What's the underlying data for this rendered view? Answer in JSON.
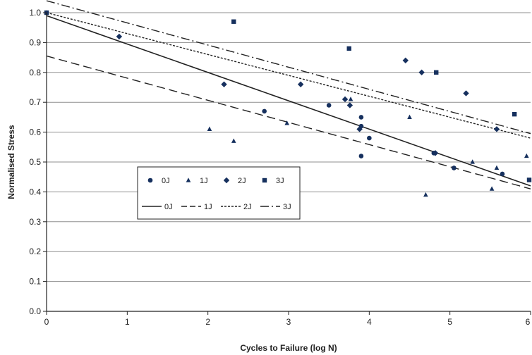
{
  "chart_data": {
    "type": "scatter",
    "xlabel": "Cycles to Failure (log N)",
    "ylabel": "Normalised Stress",
    "xlim": [
      0,
      6
    ],
    "ylim": [
      0,
      1.0
    ],
    "x_ticks": [
      0,
      1,
      2,
      3,
      4,
      5,
      6
    ],
    "y_ticks": [
      "0.0",
      "0.1",
      "0.2",
      "0.3",
      "0.4",
      "0.5",
      "0.6",
      "0.7",
      "0.8",
      "0.9",
      "1.0"
    ],
    "grid": "horizontal",
    "legend_position": "center-left",
    "colors": {
      "marker": "#16305e",
      "line": "#222222",
      "grid": "#8f8f8f"
    },
    "series": [
      {
        "name": "0J",
        "marker": "circle",
        "points": [
          [
            0,
            1.0
          ],
          [
            2.7,
            0.67
          ],
          [
            3.5,
            0.69
          ],
          [
            3.9,
            0.65
          ],
          [
            3.9,
            0.62
          ],
          [
            3.9,
            0.52
          ],
          [
            4.0,
            0.58
          ],
          [
            4.8,
            0.53
          ],
          [
            5.05,
            0.48
          ],
          [
            5.65,
            0.46
          ]
        ]
      },
      {
        "name": "1J",
        "marker": "triangle",
        "points": [
          [
            2.02,
            0.61
          ],
          [
            2.32,
            0.57
          ],
          [
            2.98,
            0.63
          ],
          [
            3.77,
            0.71
          ],
          [
            4.5,
            0.65
          ],
          [
            4.7,
            0.39
          ],
          [
            5.28,
            0.5
          ],
          [
            5.52,
            0.41
          ],
          [
            5.58,
            0.48
          ],
          [
            5.95,
            0.52
          ]
        ]
      },
      {
        "name": "2J",
        "marker": "diamond",
        "points": [
          [
            0.9,
            0.92
          ],
          [
            2.2,
            0.76
          ],
          [
            3.15,
            0.76
          ],
          [
            3.7,
            0.71
          ],
          [
            3.76,
            0.69
          ],
          [
            3.88,
            0.61
          ],
          [
            4.45,
            0.84
          ],
          [
            4.65,
            0.8
          ],
          [
            4.82,
            0.53
          ],
          [
            5.2,
            0.73
          ],
          [
            5.58,
            0.61
          ]
        ]
      },
      {
        "name": "3J",
        "marker": "square",
        "points": [
          [
            0,
            1.0
          ],
          [
            2.32,
            0.97
          ],
          [
            3.75,
            0.88
          ],
          [
            4.83,
            0.8
          ],
          [
            5.8,
            0.66
          ],
          [
            6.0,
            0.44
          ]
        ]
      }
    ],
    "fit_lines": [
      {
        "name": "0J",
        "style": "solid",
        "points": [
          [
            0,
            0.99
          ],
          [
            6,
            0.42
          ]
        ]
      },
      {
        "name": "1J",
        "style": "dashed",
        "points": [
          [
            0,
            0.855
          ],
          [
            6,
            0.41
          ]
        ]
      },
      {
        "name": "2J",
        "style": "dotted",
        "points": [
          [
            0,
            1.0
          ],
          [
            6,
            0.58
          ]
        ]
      },
      {
        "name": "3J",
        "style": "dash-dot",
        "points": [
          [
            0,
            1.04
          ],
          [
            6,
            0.595
          ]
        ]
      }
    ]
  }
}
